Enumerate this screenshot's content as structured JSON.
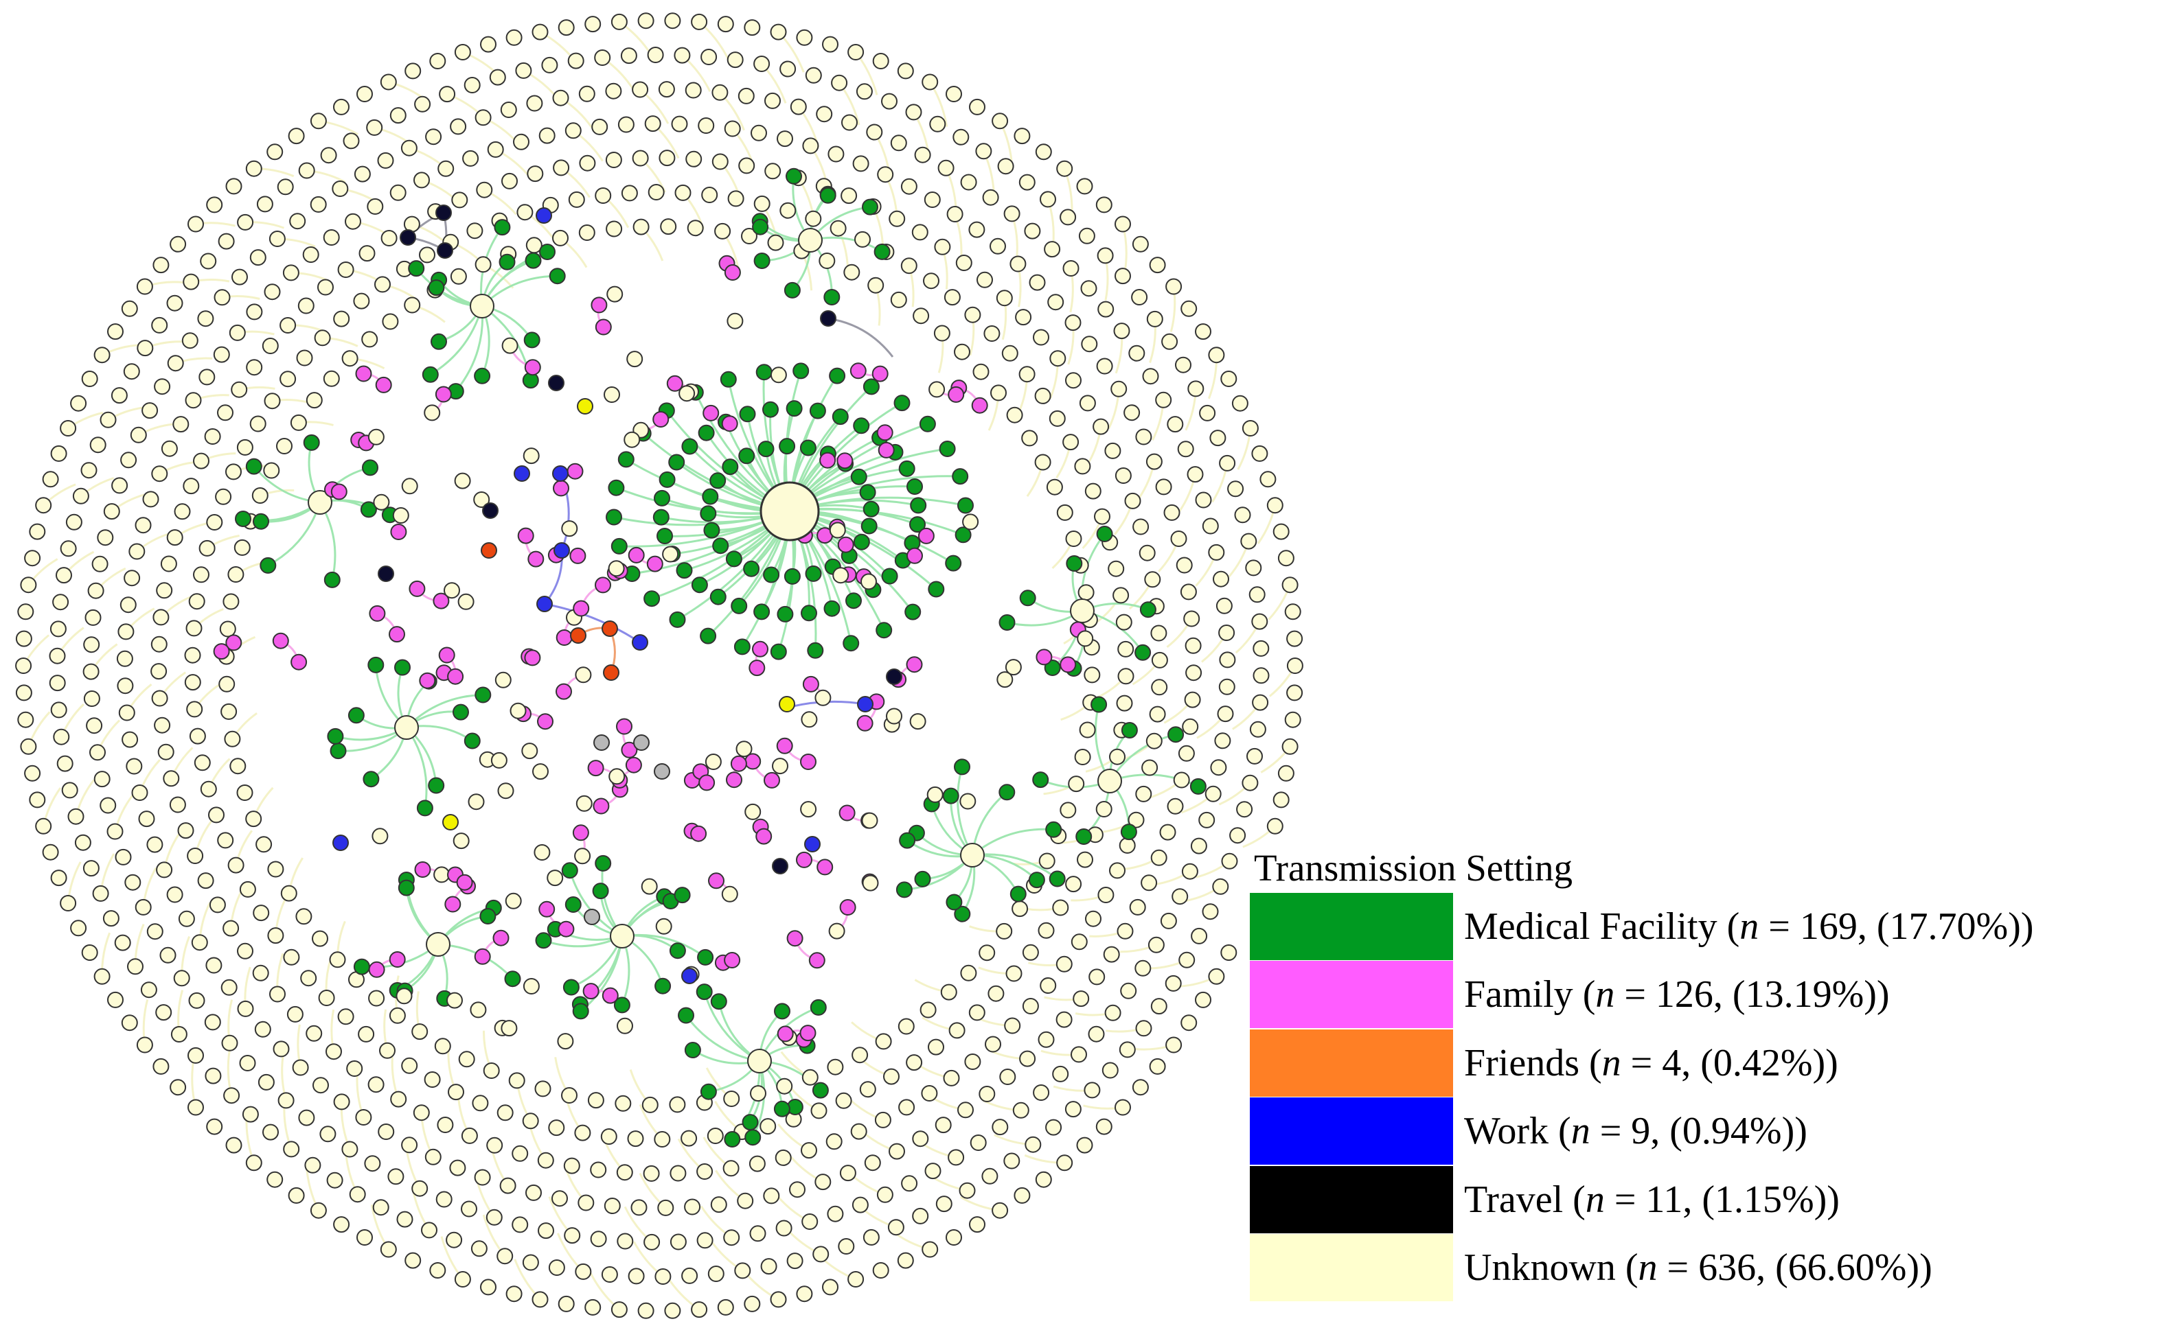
{
  "legend": {
    "title": "Transmission Setting",
    "items": [
      {
        "label": "Medical Facility",
        "var": "n",
        "count_text": " = 169, (17.70%))",
        "color": "#009a21"
      },
      {
        "label": "Family",
        "var": "n",
        "count_text": " = 126, (13.19%))",
        "color": "#ff5cff"
      },
      {
        "label": "Friends",
        "var": "n",
        "count_text": " = 4, (0.42%))",
        "color": "#ff7f25"
      },
      {
        "label": "Work",
        "var": "n",
        "count_text": " = 9, (0.94%))",
        "color": "#0000ff"
      },
      {
        "label": "Travel",
        "var": "n",
        "count_text": " = 11, (1.15%))",
        "color": "#000000"
      },
      {
        "label": "Unknown",
        "var": "n",
        "count_text": " = 636, (66.60%))",
        "color": "#ffffce"
      }
    ]
  },
  "network": {
    "node_fill": {
      "medical": "#0b9a1f",
      "family": "#f25ce8",
      "friends": "#e8470f",
      "work": "#2b2fe6",
      "travel": "#0c0c2e",
      "unknown": "#fdfbd6",
      "yellow": "#f2f200",
      "gray": "#b8b8b8"
    },
    "edge_color": {
      "medical": "#9fe6b0",
      "family": "#f7a8ea",
      "work": "#8a8ae8",
      "travel": "#9a9aa6",
      "friends": "#f0a070",
      "unknown": "#f4f2c8"
    },
    "node_stroke": "#333333"
  }
}
